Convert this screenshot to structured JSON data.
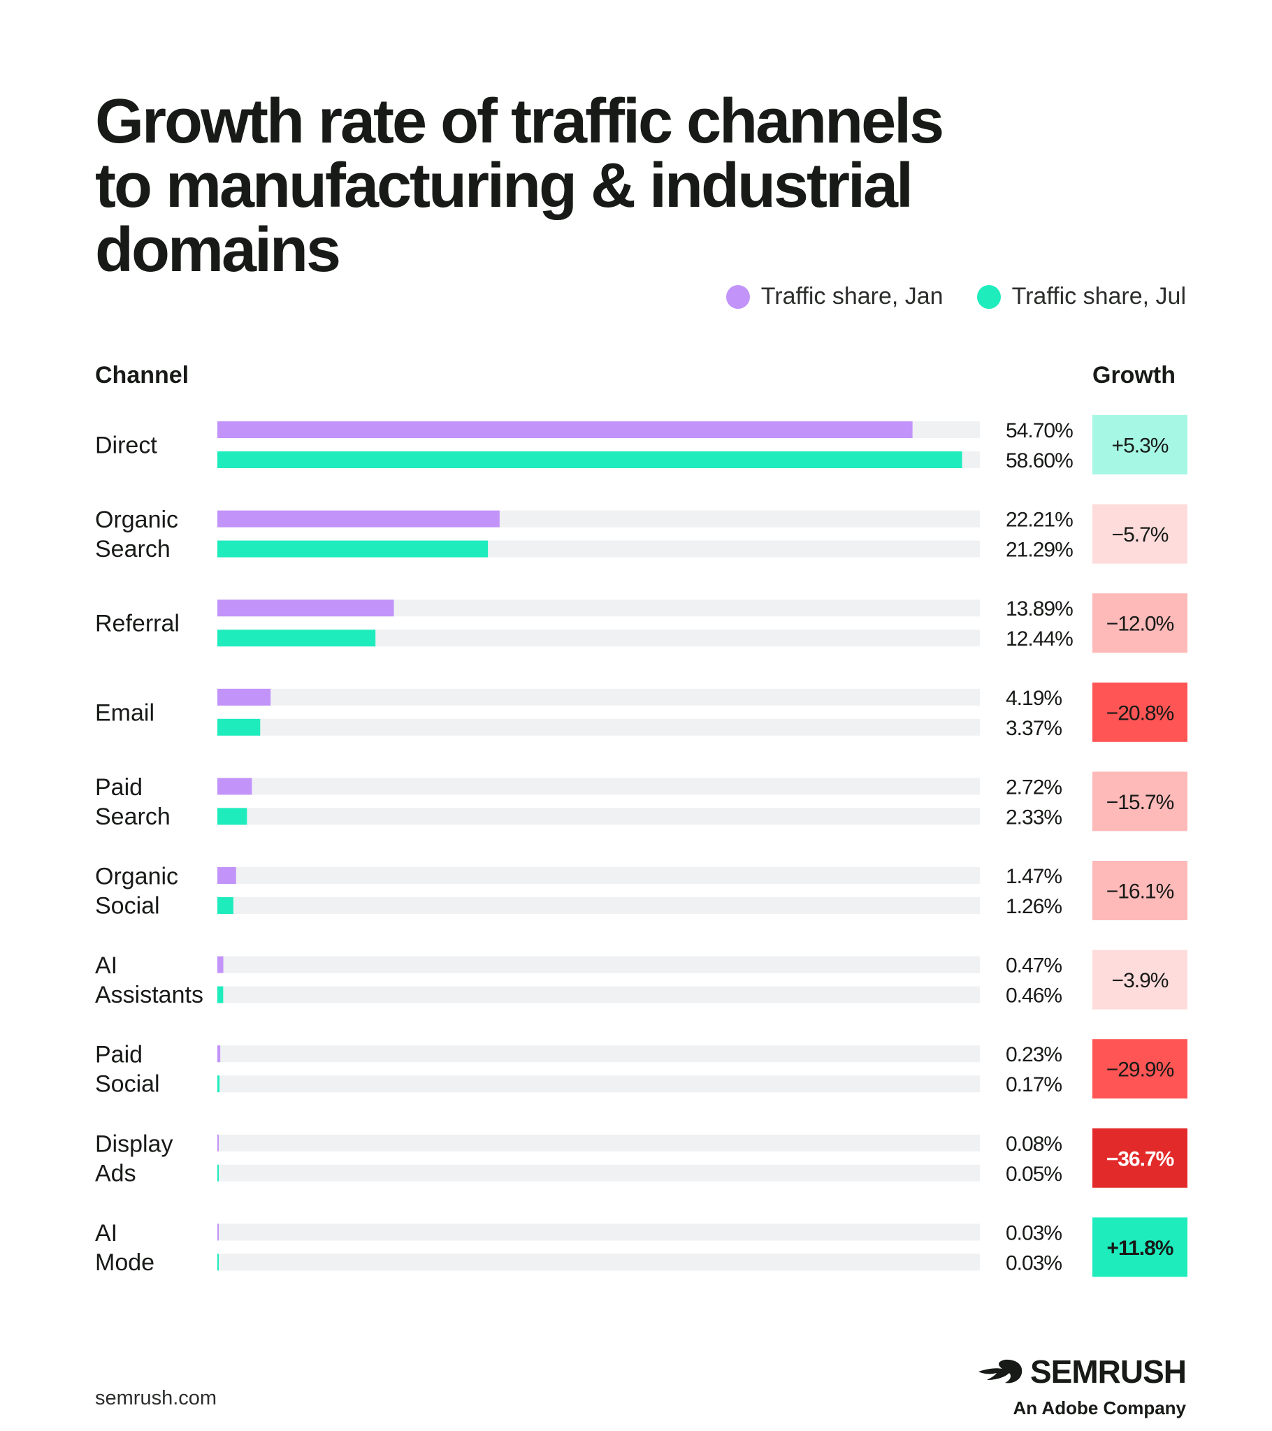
{
  "title_lines": [
    "Growth rate of traffic channels",
    "to manufacturing & industrial",
    "domains"
  ],
  "legend": [
    {
      "label": "Traffic share, Jan",
      "color": "#c294fa"
    },
    {
      "label": "Traffic share, Jul",
      "color": "#1eecbd"
    }
  ],
  "headers": {
    "channel": "Channel",
    "growth": "Growth"
  },
  "chart_data": {
    "type": "bar",
    "orientation": "horizontal",
    "title": "Growth rate of traffic channels to manufacturing & industrial domains",
    "categories": [
      [
        "Direct"
      ],
      [
        "Organic",
        "Search"
      ],
      [
        "Referral"
      ],
      [
        "Email"
      ],
      [
        "Paid",
        "Search"
      ],
      [
        "Organic",
        "Social"
      ],
      [
        "AI",
        "Assistants"
      ],
      [
        "Paid",
        "Social"
      ],
      [
        "Display",
        "Ads"
      ],
      [
        "AI",
        "Mode"
      ]
    ],
    "series": [
      {
        "name": "Traffic share, Jan",
        "color": "#c294fa",
        "values": [
          54.7,
          22.21,
          13.89,
          4.19,
          2.72,
          1.47,
          0.47,
          0.23,
          0.08,
          0.03
        ],
        "labels": [
          "54.70%",
          "22.21%",
          "13.89%",
          "4.19%",
          "2.72%",
          "1.47%",
          "0.47%",
          "0.23%",
          "0.08%",
          "0.03%"
        ]
      },
      {
        "name": "Traffic share, Jul",
        "color": "#1eecbd",
        "values": [
          58.6,
          21.29,
          12.44,
          3.37,
          2.33,
          1.26,
          0.46,
          0.17,
          0.05,
          0.03
        ],
        "labels": [
          "58.60%",
          "21.29%",
          "12.44%",
          "3.37%",
          "2.33%",
          "1.26%",
          "0.46%",
          "0.17%",
          "0.05%",
          "0.03%"
        ]
      }
    ],
    "growth": [
      {
        "label": "+5.3%",
        "bg": "#a6f7e4",
        "fg": "#171a17"
      },
      {
        "label": "−5.7%",
        "bg": "#fedcdc",
        "fg": "#171a17"
      },
      {
        "label": "−12.0%",
        "bg": "#feb9b9",
        "fg": "#171a17"
      },
      {
        "label": "−20.8%",
        "bg": "#ff5555",
        "fg": "#171a17"
      },
      {
        "label": "−15.7%",
        "bg": "#feb9b9",
        "fg": "#171a17"
      },
      {
        "label": "−16.1%",
        "bg": "#feb9b9",
        "fg": "#171a17"
      },
      {
        "label": "−3.9%",
        "bg": "#fedcdc",
        "fg": "#171a17"
      },
      {
        "label": "−29.9%",
        "bg": "#ff5555",
        "fg": "#171a17"
      },
      {
        "label": "−36.7%",
        "bg": "#e22a2a",
        "fg": "#ffffff"
      },
      {
        "label": "+11.8%",
        "bg": "#1eecbd",
        "fg": "#171a17"
      }
    ],
    "xlim": [
      0,
      60
    ],
    "track_color": "#f0f1f3"
  },
  "footer": {
    "url": "semrush.com",
    "brand": "SEMRUSH",
    "tagline": "An Adobe Company"
  }
}
